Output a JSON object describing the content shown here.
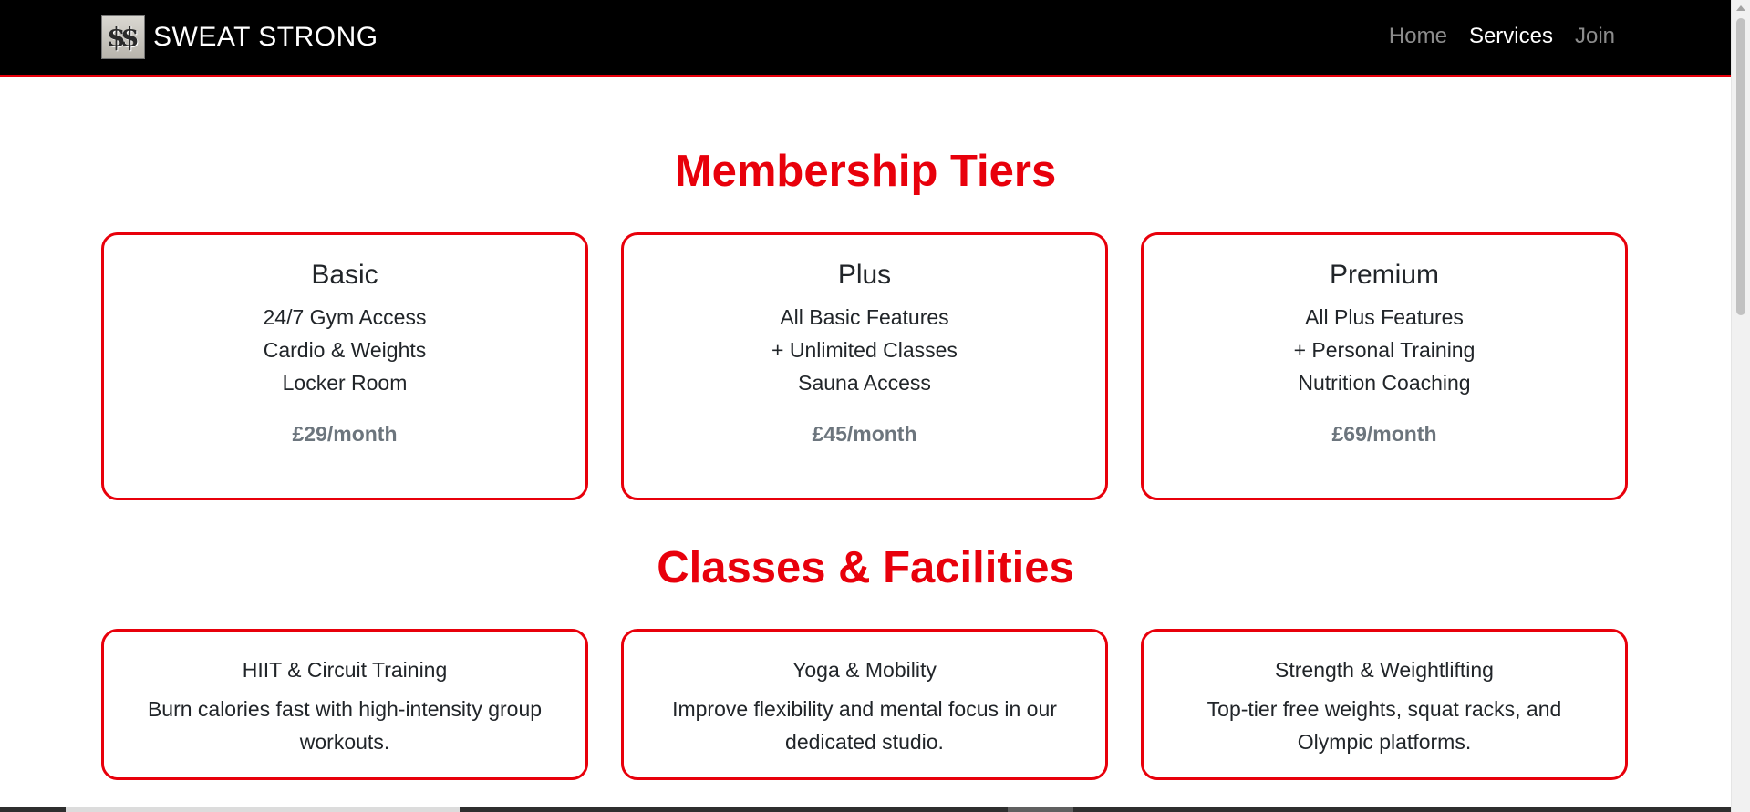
{
  "navbar": {
    "brand_icon_text": "$$",
    "brand_name": "SWEAT STRONG",
    "links": [
      {
        "label": "Home",
        "active": false
      },
      {
        "label": "Services",
        "active": true
      },
      {
        "label": "Join",
        "active": false
      }
    ]
  },
  "membership": {
    "title": "Membership Tiers",
    "tiers": [
      {
        "name": "Basic",
        "features": [
          "24/7 Gym Access",
          "Cardio & Weights",
          "Locker Room"
        ],
        "price": "£29/month"
      },
      {
        "name": "Plus",
        "features": [
          "All Basic Features",
          "+ Unlimited Classes",
          "Sauna Access"
        ],
        "price": "£45/month"
      },
      {
        "name": "Premium",
        "features": [
          "All Plus Features",
          "+ Personal Training",
          "Nutrition Coaching"
        ],
        "price": "£69/month"
      }
    ]
  },
  "classes": {
    "title": "Classes & Facilities",
    "items": [
      {
        "name": "HIIT & Circuit Training",
        "description": "Burn calories fast with high-intensity group workouts."
      },
      {
        "name": "Yoga & Mobility",
        "description": "Improve flexibility and mental focus in our dedicated studio."
      },
      {
        "name": "Strength & Weightlifting",
        "description": "Top-tier free weights, squat racks, and Olympic platforms."
      }
    ]
  },
  "colors": {
    "accent": "#e8000b",
    "navbar_bg": "#000000",
    "price_text": "#6c757d"
  }
}
